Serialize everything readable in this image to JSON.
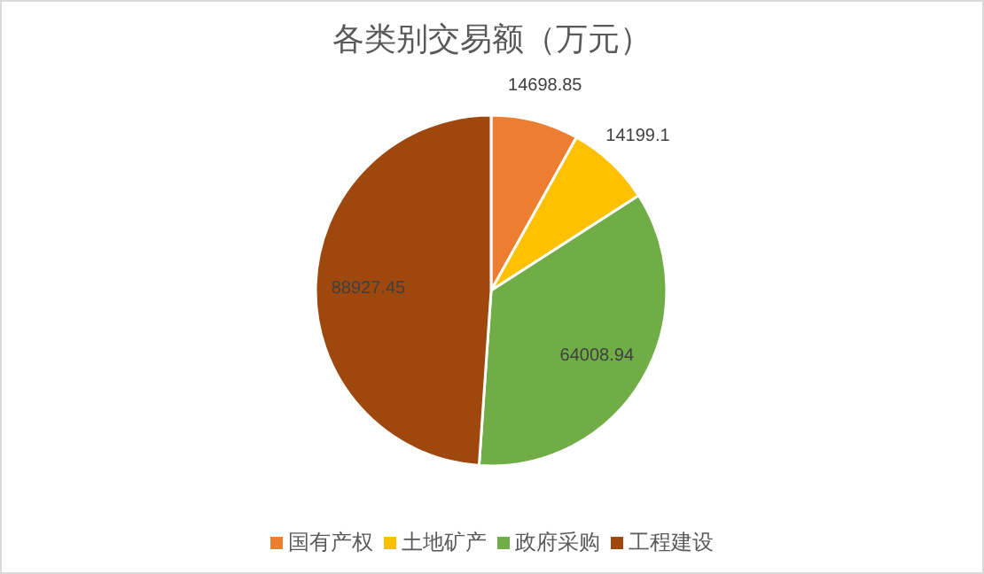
{
  "chart_data": {
    "type": "pie",
    "title": "各类别交易额（万元）",
    "categories": [
      "国有产权",
      "土地矿产",
      "政府采购",
      "工程建设"
    ],
    "values": [
      14698.85,
      14199.1,
      64008.94,
      88927.45
    ],
    "colors": [
      "#ed7d31",
      "#ffc000",
      "#70ad47",
      "#9e480e"
    ],
    "data_labels": true,
    "legend": "bottom"
  }
}
